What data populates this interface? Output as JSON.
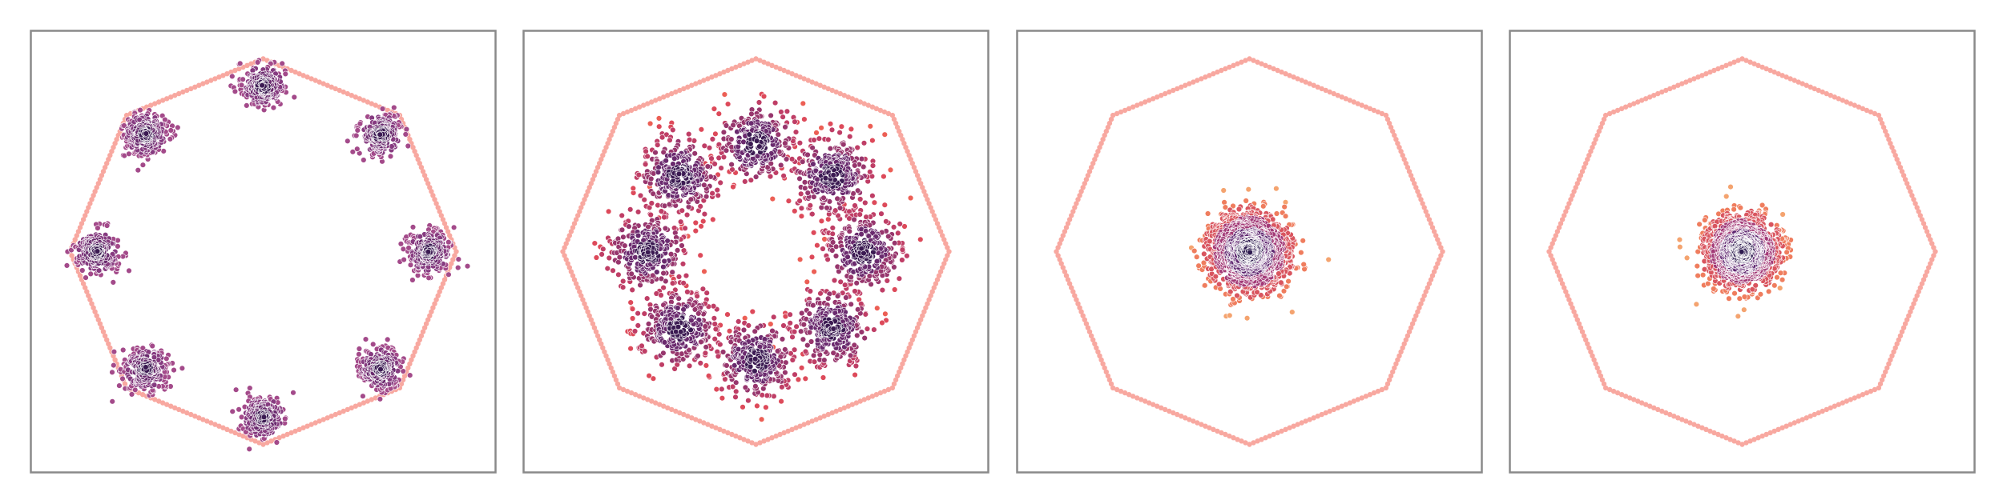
{
  "chart_data": [
    {
      "type": "scatter",
      "title": "",
      "xlabel": "",
      "ylabel": "",
      "xlim": [
        -1.15,
        1.15
      ],
      "ylim": [
        -1.1,
        1.1
      ],
      "grid": false,
      "axis_ticks": false,
      "boundary": {
        "shape": "octagon",
        "radius": 1.0,
        "marker_color": "#f8a8a0"
      },
      "series": [
        {
          "distribution": "mixture",
          "n_modes": 8,
          "mode_radius": 0.86,
          "mode_spread": 0.055,
          "n_points": 2000,
          "center": [
            0,
            0
          ],
          "colors": [
            "#3b1a52",
            "#6a2a6e",
            "#863b80",
            "#a34a8a"
          ]
        }
      ]
    },
    {
      "type": "scatter",
      "title": "",
      "xlabel": "",
      "ylabel": "",
      "xlim": [
        -1.15,
        1.15
      ],
      "ylim": [
        -1.1,
        1.1
      ],
      "grid": false,
      "axis_ticks": false,
      "boundary": {
        "shape": "octagon",
        "radius": 1.0,
        "marker_color": "#f8a8a0"
      },
      "series": [
        {
          "distribution": "mixture",
          "n_modes": 8,
          "mode_radius": 0.56,
          "mode_spread": 0.1,
          "n_points": 2400,
          "center": [
            0,
            0
          ],
          "colors": [
            "#3b1a52",
            "#6a2a6e",
            "#97366d",
            "#bf3e66",
            "#dd4a5a",
            "#ec5f55"
          ]
        }
      ]
    },
    {
      "type": "scatter",
      "title": "",
      "xlabel": "",
      "ylabel": "",
      "xlim": [
        -1.15,
        1.15
      ],
      "ylim": [
        -1.1,
        1.1
      ],
      "grid": false,
      "axis_ticks": false,
      "boundary": {
        "shape": "octagon",
        "radius": 1.0,
        "marker_color": "#f8a8a0"
      },
      "series": [
        {
          "distribution": "gaussian",
          "n_modes": 1,
          "std": 0.1,
          "n_points": 1600,
          "center": [
            0,
            0
          ],
          "colors": [
            "#2e1b4f",
            "#5f2670",
            "#a33a77",
            "#d9555f",
            "#ef7d5e",
            "#f4a36f"
          ]
        }
      ]
    },
    {
      "type": "scatter",
      "title": "",
      "xlabel": "",
      "ylabel": "",
      "xlim": [
        -1.15,
        1.15
      ],
      "ylim": [
        -1.1,
        1.1
      ],
      "grid": false,
      "axis_ticks": false,
      "boundary": {
        "shape": "octagon",
        "radius": 1.0,
        "marker_color": "#f8a8a0"
      },
      "series": [
        {
          "distribution": "gaussian",
          "n_modes": 1,
          "std": 0.09,
          "n_points": 1600,
          "center": [
            0,
            0
          ],
          "colors": [
            "#2e1b4f",
            "#5f2670",
            "#a33a77",
            "#d9555f",
            "#ef7d5e",
            "#f4a36f"
          ]
        }
      ]
    }
  ]
}
